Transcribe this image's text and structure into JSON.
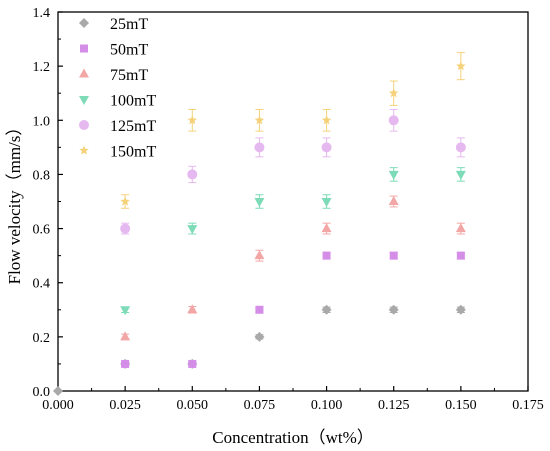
{
  "chart_data": {
    "type": "scatter",
    "title": "",
    "xlabel": "Concentration（wt%）",
    "ylabel": "Flow velocity（mm/s）",
    "xlim": [
      0,
      0.175
    ],
    "ylim": [
      0,
      1.4
    ],
    "x_ticks": [
      "0.000",
      "0.025",
      "0.050",
      "0.075",
      "0.100",
      "0.125",
      "0.150",
      "0.175"
    ],
    "y_ticks": [
      "0.0",
      "0.2",
      "0.4",
      "0.6",
      "0.8",
      "1.0",
      "1.2",
      "1.4"
    ],
    "grid": false,
    "legend_position": "top-left",
    "series": [
      {
        "name": "25mT",
        "marker": "diamond",
        "color": "#a9a9a9",
        "x": [
          0,
          0.025,
          0.05,
          0.075,
          0.1,
          0.125,
          0.15
        ],
        "y": [
          0,
          0.1,
          0.1,
          0.2,
          0.3,
          0.3,
          0.3
        ],
        "err": [
          0,
          0.006,
          0.006,
          0.008,
          0.01,
          0.01,
          0.01
        ]
      },
      {
        "name": "50mT",
        "marker": "square",
        "color": "#d58ee8",
        "x": [
          0.025,
          0.05,
          0.075,
          0.1,
          0.125,
          0.15
        ],
        "y": [
          0.1,
          0.1,
          0.3,
          0.5,
          0.5,
          0.5
        ],
        "err": [
          0.006,
          0.006,
          0.008,
          0.012,
          0.012,
          0.012
        ]
      },
      {
        "name": "75mT",
        "marker": "triangle-up",
        "color": "#f3a6a6",
        "x": [
          0.025,
          0.05,
          0.075,
          0.1,
          0.125,
          0.15
        ],
        "y": [
          0.2,
          0.3,
          0.5,
          0.6,
          0.7,
          0.6
        ],
        "err": [
          0.01,
          0.012,
          0.02,
          0.02,
          0.02,
          0.02
        ]
      },
      {
        "name": "100mT",
        "marker": "triangle-down",
        "color": "#7ddbb8",
        "x": [
          0.025,
          0.05,
          0.075,
          0.1,
          0.125,
          0.15
        ],
        "y": [
          0.3,
          0.6,
          0.7,
          0.7,
          0.8,
          0.8
        ],
        "err": [
          0.01,
          0.02,
          0.025,
          0.025,
          0.025,
          0.025
        ]
      },
      {
        "name": "125mT",
        "marker": "circle",
        "color": "#e6b8f0",
        "x": [
          0.025,
          0.05,
          0.075,
          0.1,
          0.125,
          0.15
        ],
        "y": [
          0.6,
          0.8,
          0.9,
          0.9,
          1.0,
          0.9
        ],
        "err": [
          0.02,
          0.03,
          0.035,
          0.035,
          0.04,
          0.035
        ]
      },
      {
        "name": "150mT",
        "marker": "star",
        "color": "#f5d27a",
        "x": [
          0.025,
          0.05,
          0.075,
          0.1,
          0.125,
          0.15
        ],
        "y": [
          0.7,
          1.0,
          1.0,
          1.0,
          1.1,
          1.2
        ],
        "err": [
          0.025,
          0.04,
          0.04,
          0.04,
          0.045,
          0.05
        ]
      }
    ]
  }
}
